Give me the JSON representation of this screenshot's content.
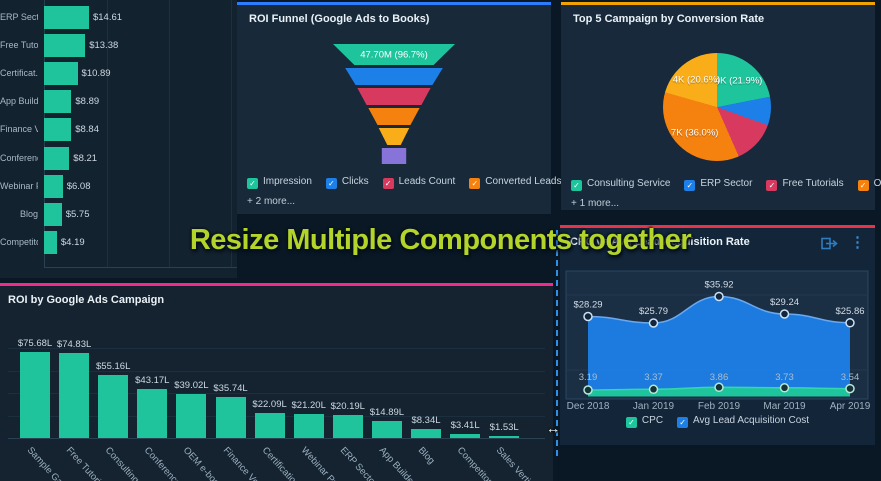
{
  "overlay": {
    "text": "Resize Multiple Components together",
    "color": "#b4d42a"
  },
  "resize": {
    "cursor_glyph": "↔",
    "guideline_color": "#2e8fe8"
  },
  "check_glyph": "✓",
  "cards": {
    "cpa": {
      "accent": "#1fc39c",
      "chart_data": {
        "type": "bar",
        "orientation": "horizontal",
        "categories": [
          "ERP Sector",
          "Free Tutor..",
          "Certificat..",
          "App Build..",
          "Finance V..",
          "Conference",
          "Webinar P..",
          "Blog",
          "Competito.."
        ],
        "values": [
          14.61,
          13.38,
          10.89,
          8.89,
          8.84,
          8.21,
          6.08,
          5.75,
          4.19
        ],
        "displays": [
          "$14.61",
          "$13.38",
          "$10.89",
          "$8.89",
          "$8.84",
          "$8.21",
          "$6.08",
          "$5.75",
          "$4.19"
        ],
        "bar_color": "#1fc39c"
      }
    },
    "funnel": {
      "title": "ROI Funnel (Google Ads to Books)",
      "accent": "#2b7cff",
      "more": "+ 2 more...",
      "legend": [
        {
          "label": "Impression",
          "color": "#1ec49c"
        },
        {
          "label": "Clicks",
          "color": "#1d7fe8"
        },
        {
          "label": "Leads Count",
          "color": "#d8395f"
        },
        {
          "label": "Converted Leads Count",
          "color": "#f5820f"
        }
      ],
      "chart_data": {
        "type": "funnel",
        "segments": [
          {
            "name": "Impression",
            "color": "#1ec49c",
            "label": "47.70M (96.7%)",
            "top_w": 100,
            "bottom_w": 65,
            "height": 21
          },
          {
            "name": "Clicks",
            "color": "#1d7fe8",
            "label": "",
            "top_w": 80,
            "bottom_w": 63,
            "height": 17
          },
          {
            "name": "Leads Count",
            "color": "#d8395f",
            "label": "",
            "top_w": 60,
            "bottom_w": 45,
            "height": 17
          },
          {
            "name": "Converted Leads Count",
            "color": "#f5820f",
            "label": "",
            "top_w": 42,
            "bottom_w": 27,
            "height": 17
          },
          {
            "name": "",
            "color": "#f9ad18",
            "label": "",
            "top_w": 25,
            "bottom_w": 11,
            "height": 17
          },
          {
            "name": "",
            "color": "#8873d8",
            "label": "",
            "top_w": 20,
            "bottom_w": 20,
            "height": 16
          }
        ]
      }
    },
    "pie": {
      "title": "Top 5 Campaign by Conversion Rate",
      "accent": "#f0a300",
      "more": "+ 1 more...",
      "legend": [
        {
          "label": "Consulting Service",
          "color": "#1ec49c"
        },
        {
          "label": "ERP Sector",
          "color": "#1d7fe8"
        },
        {
          "label": "Free Tutorials",
          "color": "#d8395f"
        },
        {
          "label": "OEM e-book",
          "color": "#f5820f"
        }
      ],
      "chart_data": {
        "type": "pie",
        "slices": [
          {
            "name": "Consulting Service",
            "percent": 21.9,
            "label": "4K (21.9%)",
            "color": "#1ec49c"
          },
          {
            "name": "ERP Sector",
            "percent": 8.6,
            "label": "",
            "color": "#1d7fe8"
          },
          {
            "name": "Free Tutorials",
            "percent": 12.9,
            "label": "",
            "color": "#d8395f"
          },
          {
            "name": "OEM e-book",
            "percent": 36.0,
            "label": "7K (36.0%)",
            "color": "#f5820f"
          },
          {
            "name": "",
            "percent": 20.6,
            "label": "4K (20.6%)",
            "color": "#f9ad18"
          }
        ]
      }
    },
    "roi": {
      "title": "ROI by Google Ads Campaign",
      "accent": "#f02b8c",
      "chart_data": {
        "type": "bar",
        "orientation": "vertical",
        "categories": [
          "Sample Galle..",
          "Free Tutorial..",
          "Consulting S..",
          "Conference",
          "OEM e-book",
          "Finance Ver..",
          "Certification ..",
          "Webinar Pro..",
          "ERP Sector",
          "App Builder",
          "Blog",
          "Competitor ..",
          "Sales Vertic.."
        ],
        "values": [
          75.68,
          74.83,
          55.16,
          43.17,
          39.02,
          35.74,
          22.09,
          21.2,
          20.19,
          14.89,
          8.34,
          3.41,
          1.53
        ],
        "displays": [
          "$75.68L",
          "$74.83L",
          "$55.16L",
          "$43.17L",
          "$39.02L",
          "$35.74L",
          "$22.09L",
          "$21.20L",
          "$20.19L",
          "$14.89L",
          "$8.34L",
          "$3.41L",
          "$1.53L"
        ],
        "bar_color": "#1fc39c"
      }
    },
    "cpc": {
      "title": "CPC vs Avg Lead Acquisition Rate",
      "accent": "#e73349",
      "icons": [
        {
          "name": "export-icon"
        },
        {
          "name": "kebab-menu-icon",
          "glyph": "⋮"
        }
      ],
      "legend": [
        {
          "label": "CPC",
          "color": "#1ec49c"
        },
        {
          "label": "Avg Lead Acquisition Cost",
          "color": "#1d7fe8"
        }
      ],
      "chart_data": {
        "type": "area",
        "x": [
          "Dec 2018",
          "Jan 2019",
          "Feb 2019",
          "Mar 2019",
          "Apr 2019"
        ],
        "series": [
          {
            "name": "CPC",
            "color": "#1ec49c",
            "values": [
              3.19,
              3.37,
              3.86,
              3.73,
              3.54
            ],
            "displays": [
              "3.19",
              "3.37",
              "3.86",
              "3.73",
              "3.54"
            ]
          },
          {
            "name": "Avg Lead Acquisition Cost",
            "color": "#1d7fe8",
            "values": [
              28.29,
              25.79,
              35.92,
              29.24,
              25.86
            ],
            "displays": [
              "$28.29",
              "$25.79",
              "$35.92",
              "$29.24",
              "$25.86"
            ]
          }
        ],
        "legend_position": "bottom",
        "grid": true
      }
    }
  }
}
